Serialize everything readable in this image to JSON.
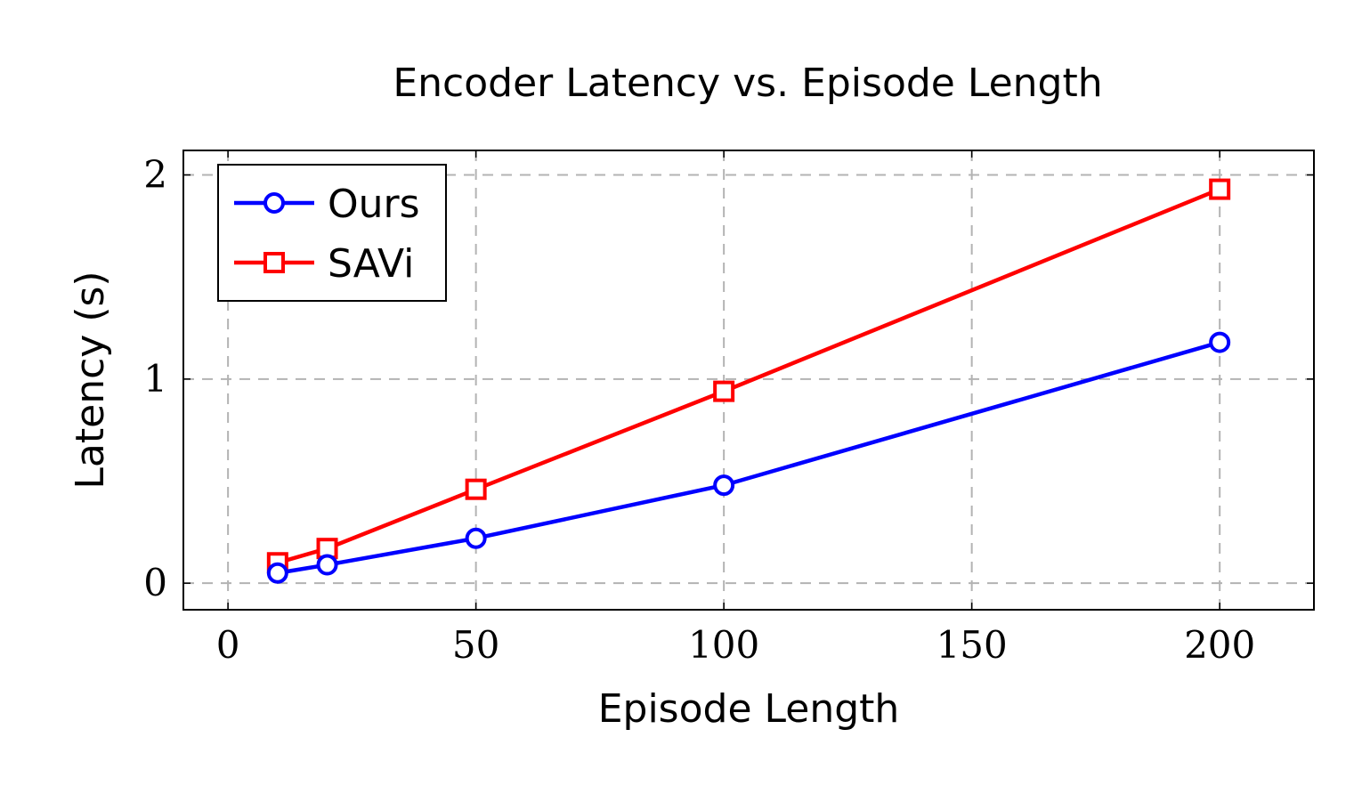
{
  "chart_data": {
    "type": "line",
    "title": "Encoder Latency vs. Episode Length",
    "xlabel": "Episode Length",
    "ylabel": "Latency (s)",
    "xlim": [
      -9,
      219
    ],
    "ylim": [
      -0.13,
      2.12
    ],
    "xticks": [
      0,
      50,
      100,
      150,
      200
    ],
    "yticks": [
      0,
      1,
      2
    ],
    "grid": true,
    "legend_position": "top-left",
    "series": [
      {
        "name": "Ours",
        "color": "#0000ff",
        "marker": "circle",
        "x": [
          10,
          20,
          50,
          100,
          200
        ],
        "y": [
          0.05,
          0.09,
          0.22,
          0.48,
          1.18
        ]
      },
      {
        "name": "SAVi",
        "color": "#ff0000",
        "marker": "square",
        "x": [
          10,
          20,
          50,
          100,
          200
        ],
        "y": [
          0.1,
          0.17,
          0.46,
          0.94,
          1.93
        ]
      }
    ]
  }
}
